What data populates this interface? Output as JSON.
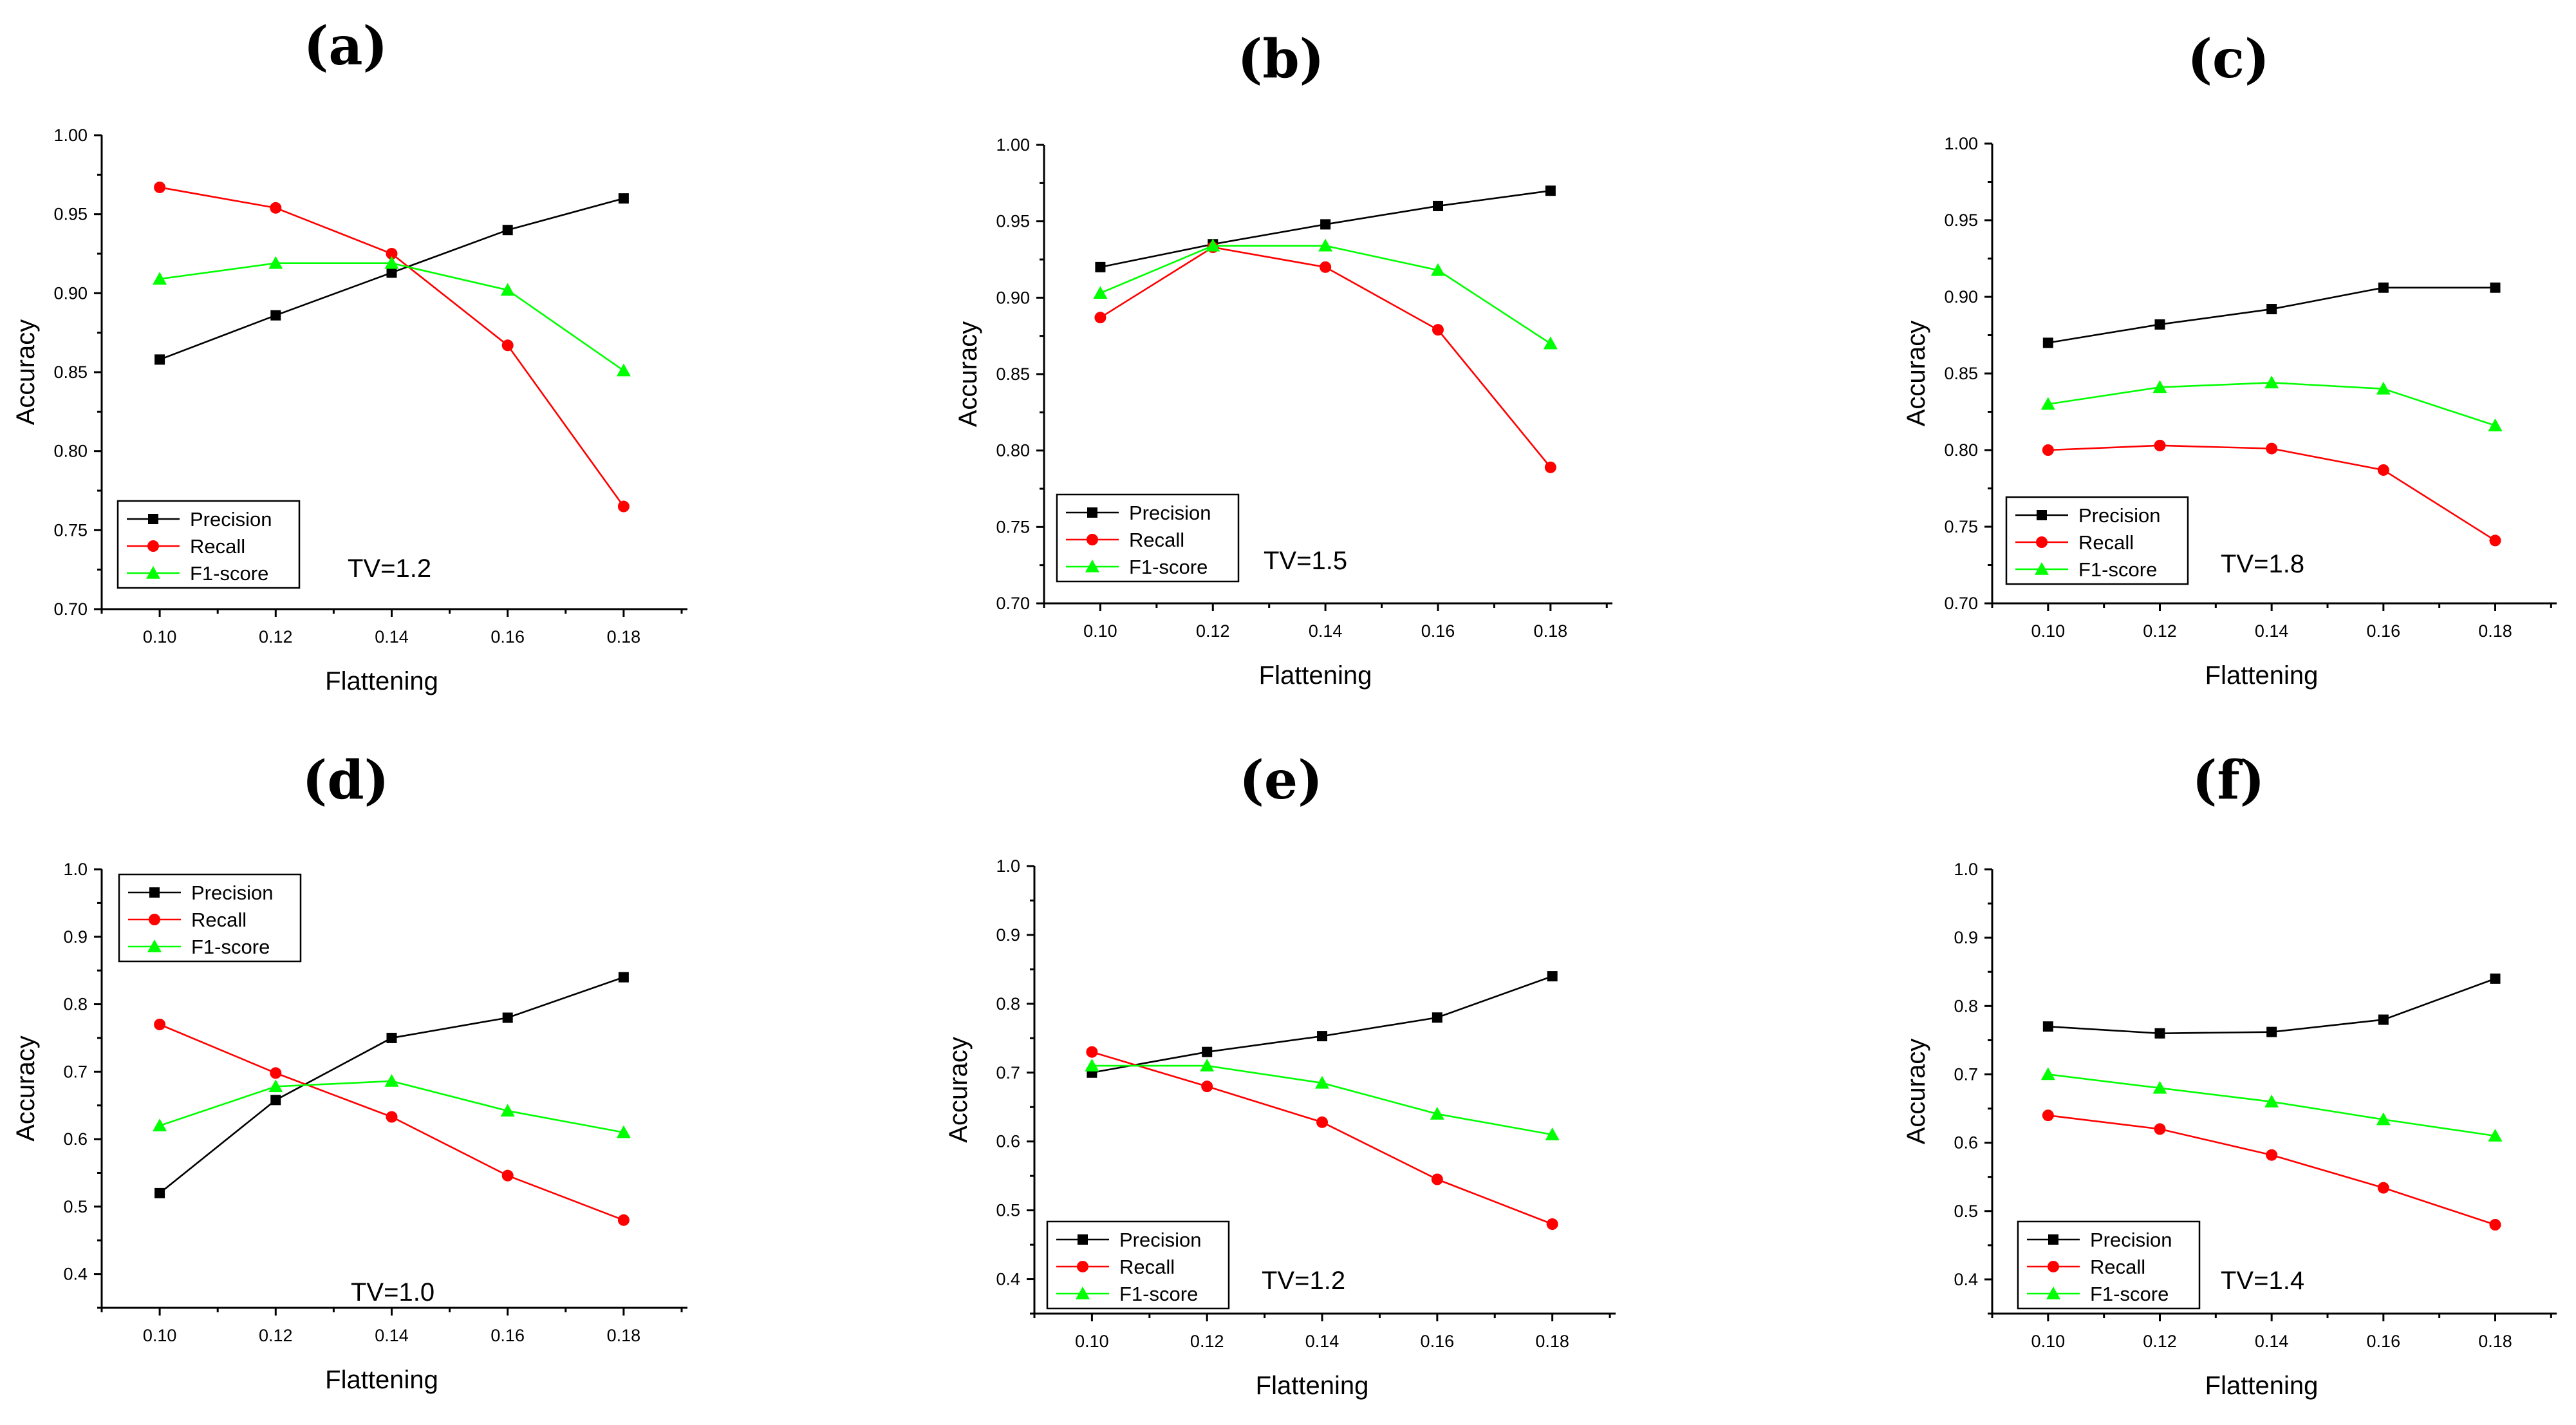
{
  "chart_data": [
    {
      "panel": "(a)",
      "type": "line",
      "x": [
        0.1,
        0.12,
        0.14,
        0.16,
        0.18
      ],
      "xticks": [
        "0.10",
        "0.12",
        "0.14",
        "0.16",
        "0.18"
      ],
      "xlim": [
        0.09,
        0.191
      ],
      "ylim": [
        0.7,
        1.0
      ],
      "yticks": [
        "0.70",
        "0.75",
        "0.80",
        "0.85",
        "0.90",
        "0.95",
        "1.00"
      ],
      "xlabel": "Flattening",
      "ylabel": "Accuracy",
      "annotation": "TV=1.2",
      "legend_position": "lower-left",
      "series": [
        {
          "name": "Precision",
          "color": "#000000",
          "marker": "square",
          "values": [
            0.858,
            0.886,
            0.913,
            0.94,
            0.96
          ]
        },
        {
          "name": "Recall",
          "color": "#ff0000",
          "marker": "circle",
          "values": [
            0.967,
            0.954,
            0.925,
            0.867,
            0.765
          ]
        },
        {
          "name": "F1-score",
          "color": "#00ff00",
          "marker": "triangle",
          "values": [
            0.909,
            0.919,
            0.919,
            0.902,
            0.851
          ]
        }
      ]
    },
    {
      "panel": "(b)",
      "type": "line",
      "x": [
        0.1,
        0.12,
        0.14,
        0.16,
        0.18
      ],
      "xticks": [
        "0.10",
        "0.12",
        "0.14",
        "0.16",
        "0.18"
      ],
      "xlim": [
        0.09,
        0.191
      ],
      "ylim": [
        0.7,
        1.0
      ],
      "yticks": [
        "0.70",
        "0.75",
        "0.80",
        "0.85",
        "0.90",
        "0.95",
        "1.00"
      ],
      "xlabel": "Flattening",
      "ylabel": "Accuracy",
      "annotation": "TV=1.5",
      "legend_position": "lower-left",
      "series": [
        {
          "name": "Precision",
          "color": "#000000",
          "marker": "square",
          "values": [
            0.92,
            0.935,
            0.948,
            0.96,
            0.97
          ]
        },
        {
          "name": "Recall",
          "color": "#ff0000",
          "marker": "circle",
          "values": [
            0.887,
            0.933,
            0.92,
            0.879,
            0.789
          ]
        },
        {
          "name": "F1-score",
          "color": "#00ff00",
          "marker": "triangle",
          "values": [
            0.903,
            0.934,
            0.934,
            0.918,
            0.87
          ]
        }
      ]
    },
    {
      "panel": "(c)",
      "type": "line",
      "x": [
        0.1,
        0.12,
        0.14,
        0.16,
        0.18
      ],
      "xticks": [
        "0.10",
        "0.12",
        "0.14",
        "0.16",
        "0.18"
      ],
      "xlim": [
        0.09,
        0.191
      ],
      "ylim": [
        0.7,
        1.0
      ],
      "yticks": [
        "0.70",
        "0.75",
        "0.80",
        "0.85",
        "0.90",
        "0.95",
        "1.00"
      ],
      "xlabel": "Flattening",
      "ylabel": "Accuracy",
      "annotation": "TV=1.8",
      "legend_position": "lower-left",
      "series": [
        {
          "name": "Precision",
          "color": "#000000",
          "marker": "square",
          "values": [
            0.87,
            0.882,
            0.892,
            0.906,
            0.906
          ]
        },
        {
          "name": "Recall",
          "color": "#ff0000",
          "marker": "circle",
          "values": [
            0.8,
            0.803,
            0.801,
            0.787,
            0.741
          ]
        },
        {
          "name": "F1-score",
          "color": "#00ff00",
          "marker": "triangle",
          "values": [
            0.83,
            0.841,
            0.844,
            0.84,
            0.816
          ]
        }
      ]
    },
    {
      "panel": "(d)",
      "type": "line",
      "x": [
        0.1,
        0.12,
        0.14,
        0.16,
        0.18
      ],
      "xticks": [
        "0.10",
        "0.12",
        "0.14",
        "0.16",
        "0.18"
      ],
      "xlim": [
        0.09,
        0.191
      ],
      "ylim": [
        0.35,
        1.0
      ],
      "yticks": [
        "0.4",
        "0.5",
        "0.6",
        "0.7",
        "0.8",
        "0.9",
        "1.0"
      ],
      "xlabel": "Flattening",
      "ylabel": "Accuracy",
      "annotation": "TV=1.0",
      "legend_position": "top-left",
      "series": [
        {
          "name": "Precision",
          "color": "#000000",
          "marker": "square",
          "values": [
            0.52,
            0.658,
            0.75,
            0.78,
            0.84
          ]
        },
        {
          "name": "Recall",
          "color": "#ff0000",
          "marker": "circle",
          "values": [
            0.77,
            0.698,
            0.633,
            0.546,
            0.48
          ]
        },
        {
          "name": "F1-score",
          "color": "#00ff00",
          "marker": "triangle",
          "values": [
            0.62,
            0.678,
            0.686,
            0.642,
            0.61
          ]
        }
      ]
    },
    {
      "panel": "(e)",
      "type": "line",
      "x": [
        0.1,
        0.12,
        0.14,
        0.16,
        0.18
      ],
      "xticks": [
        "0.10",
        "0.12",
        "0.14",
        "0.16",
        "0.18"
      ],
      "xlim": [
        0.09,
        0.191
      ],
      "ylim": [
        0.35,
        1.0
      ],
      "yticks": [
        "0.4",
        "0.5",
        "0.6",
        "0.7",
        "0.8",
        "0.9",
        "1.0"
      ],
      "xlabel": "Flattening",
      "ylabel": "Accuracy",
      "annotation": "TV=1.2",
      "legend_position": "lower-left",
      "series": [
        {
          "name": "Precision",
          "color": "#000000",
          "marker": "square",
          "values": [
            0.7,
            0.73,
            0.753,
            0.78,
            0.84
          ]
        },
        {
          "name": "Recall",
          "color": "#ff0000",
          "marker": "circle",
          "values": [
            0.73,
            0.68,
            0.628,
            0.545,
            0.48
          ]
        },
        {
          "name": "F1-score",
          "color": "#00ff00",
          "marker": "triangle",
          "values": [
            0.71,
            0.71,
            0.685,
            0.64,
            0.61
          ]
        }
      ]
    },
    {
      "panel": "(f)",
      "type": "line",
      "x": [
        0.1,
        0.12,
        0.14,
        0.16,
        0.18
      ],
      "xticks": [
        "0.10",
        "0.12",
        "0.14",
        "0.16",
        "0.18"
      ],
      "xlim": [
        0.09,
        0.191
      ],
      "ylim": [
        0.35,
        1.0
      ],
      "yticks": [
        "0.4",
        "0.5",
        "0.6",
        "0.7",
        "0.8",
        "0.9",
        "1.0"
      ],
      "xlabel": "Flattening",
      "ylabel": "Accuracy",
      "annotation": "TV=1.4",
      "legend_position": "lower-left",
      "series": [
        {
          "name": "Precision",
          "color": "#000000",
          "marker": "square",
          "values": [
            0.77,
            0.76,
            0.762,
            0.78,
            0.84
          ]
        },
        {
          "name": "Recall",
          "color": "#ff0000",
          "marker": "circle",
          "values": [
            0.64,
            0.62,
            0.582,
            0.534,
            0.48
          ]
        },
        {
          "name": "F1-score",
          "color": "#00ff00",
          "marker": "triangle",
          "values": [
            0.7,
            0.68,
            0.66,
            0.634,
            0.61
          ]
        }
      ]
    }
  ]
}
